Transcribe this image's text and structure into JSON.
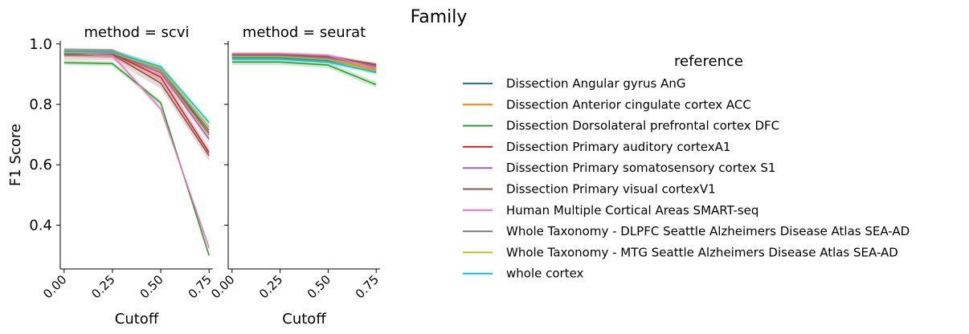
{
  "title": "Family",
  "chart_data": [
    {
      "type": "line",
      "panel_title": "method = scvi",
      "xlabel": "Cutoff",
      "ylabel": "F1 Score",
      "x": [
        0.0,
        0.25,
        0.5,
        0.75
      ],
      "xticks": [
        "0.00",
        "0.25",
        "0.50",
        "0.75"
      ],
      "yticks": [
        "0.4",
        "0.6",
        "0.8",
        "1.0"
      ],
      "xlim": [
        -0.02,
        0.77
      ],
      "ylim": [
        0.255,
        1.01
      ],
      "series": [
        {
          "name": "Dissection Angular gyrus AnG",
          "values": [
            0.972,
            0.971,
            0.915,
            0.705
          ],
          "band": 0.012
        },
        {
          "name": "Dissection Anterior cingulate cortex ACC",
          "values": [
            0.972,
            0.969,
            0.905,
            0.7
          ],
          "band": 0.012
        },
        {
          "name": "Dissection Dorsolateral prefrontal cortex DFC",
          "values": [
            0.938,
            0.935,
            0.805,
            0.3
          ],
          "band": 0.008
        },
        {
          "name": "Dissection Primary auditory cortexA1",
          "values": [
            0.972,
            0.969,
            0.89,
            0.64
          ],
          "band": 0.015
        },
        {
          "name": "Dissection Primary somatosensory cortex S1",
          "values": [
            0.972,
            0.97,
            0.905,
            0.685
          ],
          "band": 0.012
        },
        {
          "name": "Dissection Primary visual cortexV1",
          "values": [
            0.965,
            0.965,
            0.87,
            0.63
          ],
          "band": 0.018
        },
        {
          "name": "Human Multiple Cortical Areas SMART-seq",
          "values": [
            0.972,
            0.962,
            0.785,
            0.325
          ],
          "band": 0.01
        },
        {
          "name": "Whole Taxonomy - DLPFC Seattle Alzheimers Disease Atlas SEA-AD",
          "values": [
            0.97,
            0.97,
            0.915,
            0.715
          ],
          "band": 0.01
        },
        {
          "name": "Whole Taxonomy - MTG Seattle Alzheimers Disease Atlas SEA-AD",
          "values": [
            0.972,
            0.97,
            0.918,
            0.725
          ],
          "band": 0.01
        },
        {
          "name": "whole cortex",
          "values": [
            0.975,
            0.972,
            0.925,
            0.74
          ],
          "band": 0.01
        }
      ]
    },
    {
      "type": "line",
      "panel_title": "method = seurat",
      "xlabel": "Cutoff",
      "ylabel": "",
      "x": [
        0.0,
        0.25,
        0.5,
        0.75
      ],
      "xticks": [
        "0.00",
        "0.25",
        "0.50",
        "0.75"
      ],
      "yticks": [],
      "xlim": [
        -0.02,
        0.77
      ],
      "ylim": [
        0.255,
        1.01
      ],
      "series": [
        {
          "name": "Dissection Angular gyrus AnG",
          "values": [
            0.955,
            0.955,
            0.945,
            0.915
          ],
          "band": 0.008
        },
        {
          "name": "Dissection Anterior cingulate cortex ACC",
          "values": [
            0.96,
            0.96,
            0.95,
            0.915
          ],
          "band": 0.008
        },
        {
          "name": "Dissection Dorsolateral prefrontal cortex DFC",
          "values": [
            0.94,
            0.94,
            0.93,
            0.865
          ],
          "band": 0.01
        },
        {
          "name": "Dissection Primary auditory cortexA1",
          "values": [
            0.965,
            0.965,
            0.96,
            0.93
          ],
          "band": 0.006
        },
        {
          "name": "Dissection Primary somatosensory cortex S1",
          "values": [
            0.965,
            0.965,
            0.955,
            0.925
          ],
          "band": 0.006
        },
        {
          "name": "Dissection Primary visual cortexV1",
          "values": [
            0.965,
            0.965,
            0.958,
            0.932
          ],
          "band": 0.006
        },
        {
          "name": "Human Multiple Cortical Areas SMART-seq",
          "values": [
            0.968,
            0.968,
            0.962,
            0.92
          ],
          "band": 0.006
        },
        {
          "name": "Whole Taxonomy - DLPFC Seattle Alzheimers Disease Atlas SEA-AD",
          "values": [
            0.96,
            0.96,
            0.95,
            0.91
          ],
          "band": 0.008
        },
        {
          "name": "Whole Taxonomy - MTG Seattle Alzheimers Disease Atlas SEA-AD",
          "values": [
            0.958,
            0.958,
            0.948,
            0.912
          ],
          "band": 0.008
        },
        {
          "name": "whole cortex",
          "values": [
            0.95,
            0.95,
            0.94,
            0.905
          ],
          "band": 0.008
        }
      ]
    }
  ],
  "legend": {
    "title": "reference",
    "placement": "right",
    "items": [
      {
        "label": "Dissection Angular gyrus AnG",
        "color": "#1f77b4"
      },
      {
        "label": "Dissection Anterior cingulate cortex ACC",
        "color": "#ff7f0e"
      },
      {
        "label": "Dissection Dorsolateral prefrontal cortex DFC",
        "color": "#2ca02c"
      },
      {
        "label": "Dissection Primary auditory cortexA1",
        "color": "#d62728"
      },
      {
        "label": "Dissection Primary somatosensory cortex S1",
        "color": "#9467bd"
      },
      {
        "label": "Dissection Primary visual cortexV1",
        "color": "#8c564b"
      },
      {
        "label": "Human Multiple Cortical Areas SMART-seq",
        "color": "#e377c2"
      },
      {
        "label": "Whole Taxonomy - DLPFC Seattle Alzheimers Disease Atlas SEA-AD",
        "color": "#7f7f7f"
      },
      {
        "label": "Whole Taxonomy - MTG Seattle Alzheimers Disease Atlas SEA-AD",
        "color": "#bcbd22"
      },
      {
        "label": "whole cortex",
        "color": "#17becf"
      }
    ]
  }
}
